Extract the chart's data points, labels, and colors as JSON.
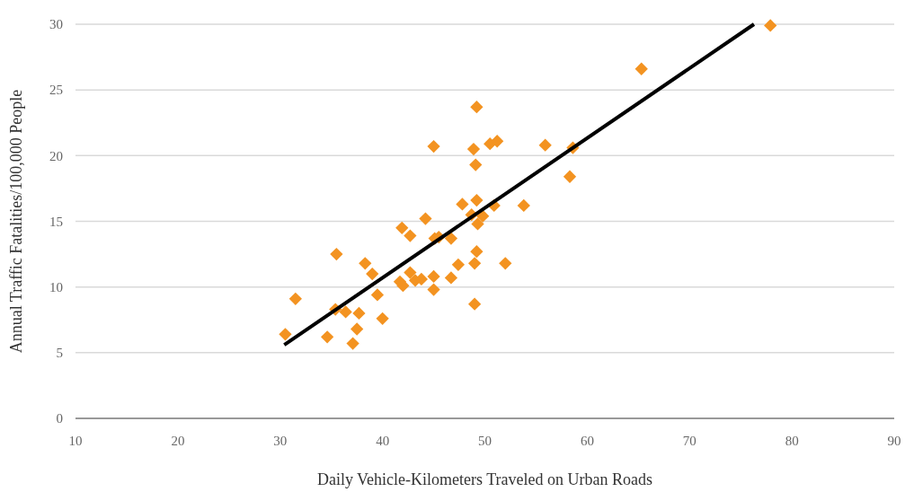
{
  "chart_data": {
    "type": "scatter",
    "xlabel": "Daily Vehicle-Kilometers Traveled on Urban Roads",
    "ylabel": "Annual Traffic Fatalities/100,000 People",
    "xlim": [
      10,
      90
    ],
    "xticks": [
      10,
      20,
      30,
      40,
      50,
      60,
      70,
      80,
      90
    ],
    "ylim": [
      0,
      30
    ],
    "yticks": [
      0,
      5,
      10,
      15,
      20,
      25,
      30
    ],
    "grid": "y",
    "marker": "diamond",
    "series": [
      {
        "color": "#f39321",
        "x": [
          30.5,
          31.5,
          34.6,
          35.5,
          35.4,
          36.4,
          37.1,
          37.5,
          37.7,
          38.3,
          39.0,
          39.5,
          40.0,
          41.9,
          41.7,
          42.0,
          42.7,
          42.7,
          43.2,
          43.8,
          44.2,
          45.0,
          45.1,
          45.5,
          45.0,
          45.0,
          46.7,
          46.7,
          47.4,
          47.8,
          48.7,
          48.9,
          49.1,
          49.2,
          49.2,
          49.3,
          49.8,
          49.0,
          49.2,
          49.0,
          50.5,
          51.2,
          50.9,
          52.0,
          53.8,
          55.9,
          58.3,
          58.6,
          65.3,
          77.9
        ],
        "values": [
          6.4,
          9.1,
          6.2,
          12.5,
          8.3,
          8.1,
          5.7,
          6.8,
          8.0,
          11.8,
          11.0,
          9.4,
          7.6,
          14.5,
          10.4,
          10.1,
          13.9,
          11.1,
          10.5,
          10.6,
          15.2,
          20.7,
          13.7,
          13.8,
          10.8,
          9.8,
          13.7,
          10.7,
          11.7,
          16.3,
          15.5,
          20.5,
          19.3,
          23.7,
          16.6,
          14.8,
          15.4,
          11.8,
          12.7,
          8.7,
          20.9,
          21.1,
          16.2,
          11.8,
          16.2,
          20.8,
          18.4,
          20.6,
          26.6,
          29.9
        ]
      },
      {
        "type": "line",
        "marker": "none",
        "color": "#000000",
        "x": [
          30.4,
          76.3
        ],
        "values": [
          5.6,
          30
        ]
      }
    ]
  }
}
